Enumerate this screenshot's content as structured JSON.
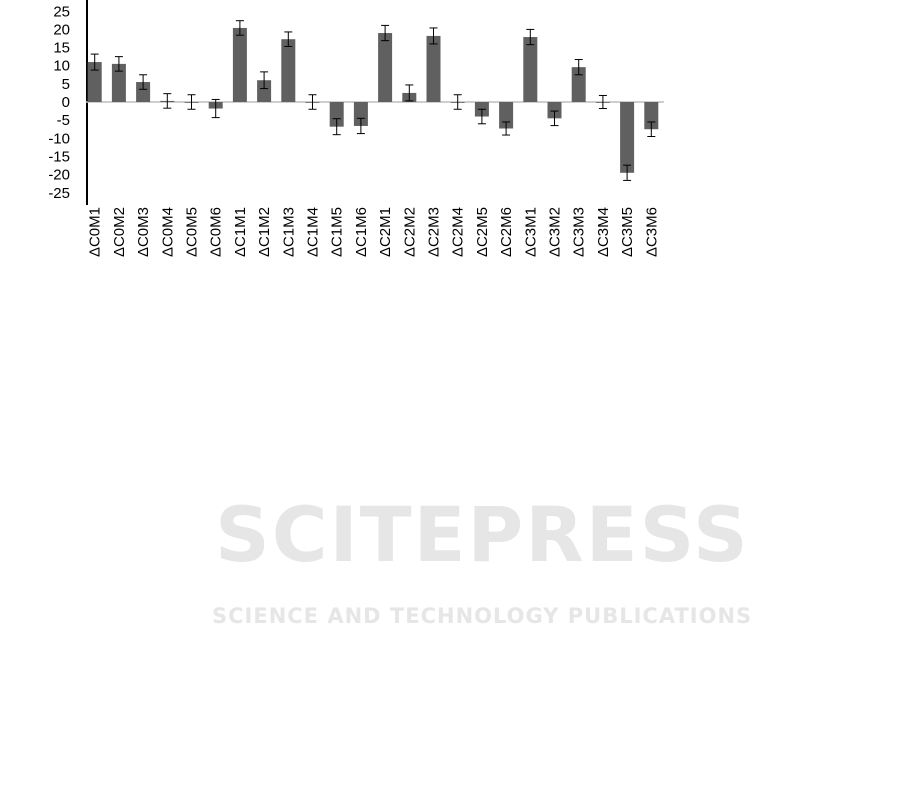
{
  "chart_data": {
    "type": "bar",
    "title": "",
    "xlabel": "",
    "ylabel": "",
    "ylim": [
      -25,
      25
    ],
    "yticks": [
      25,
      20,
      15,
      10,
      5,
      0,
      -5,
      -10,
      -15,
      -20,
      -25
    ],
    "grid": false,
    "bar_color": "#606060",
    "categories": [
      "ΔC0M1",
      "ΔC0M2",
      "ΔC0M3",
      "ΔC0M4",
      "ΔC0M5",
      "ΔC0M6",
      "ΔC1M1",
      "ΔC1M2",
      "ΔC1M3",
      "ΔC1M4",
      "ΔC1M5",
      "ΔC1M6",
      "ΔC2M1",
      "ΔC2M2",
      "ΔC2M3",
      "ΔC2M4",
      "ΔC2M5",
      "ΔC2M6",
      "ΔC3M1",
      "ΔC3M2",
      "ΔC3M3",
      "ΔC3M4",
      "ΔC3M5",
      "ΔC3M6"
    ],
    "values": [
      11,
      10.5,
      5.5,
      0.3,
      0,
      -1.8,
      20.4,
      6,
      17.3,
      0,
      -6.8,
      -6.6,
      19,
      2.5,
      18.2,
      0,
      -4,
      -7.3,
      17.9,
      -4.5,
      9.6,
      0,
      -19.5,
      -7.5
    ],
    "errors": [
      2.2,
      2,
      2,
      2,
      2,
      2.5,
      2,
      2.3,
      2,
      2,
      2.2,
      2.1,
      2.1,
      2.2,
      2.2,
      2,
      2,
      1.8,
      2.1,
      2,
      2.1,
      1.8,
      2.1,
      2
    ]
  },
  "watermark": {
    "line1": "SCITEPRESS",
    "line2": "SCIENCE AND TECHNOLOGY PUBLICATIONS"
  }
}
